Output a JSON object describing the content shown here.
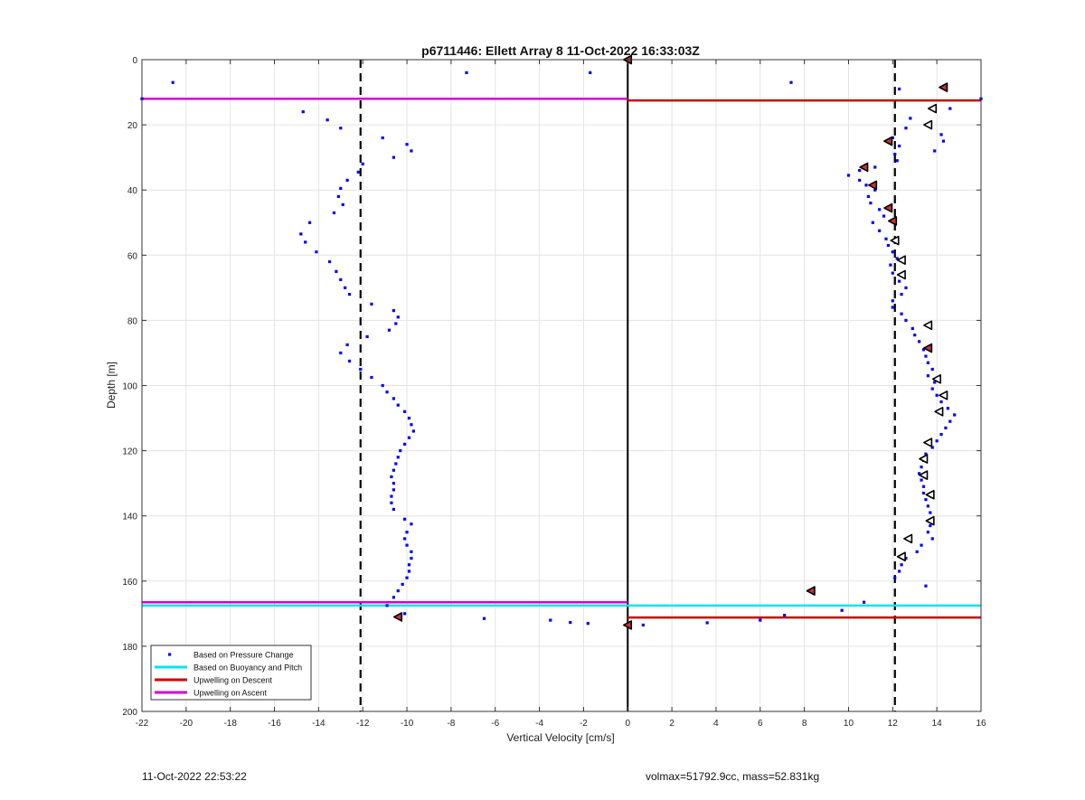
{
  "chart_data": {
    "type": "scatter",
    "title": "p6711446: Ellett Array 8 11-Oct-2022 16:33:03Z",
    "xlabel": "Vertical Velocity [cm/s]",
    "ylabel": "Depth [m]",
    "xlim": [
      -22,
      16
    ],
    "ylim": [
      0,
      200
    ],
    "y_reversed": true,
    "grid": true,
    "xticks": [
      -22,
      -20,
      -18,
      -16,
      -14,
      -12,
      -10,
      -8,
      -6,
      -4,
      -2,
      0,
      2,
      4,
      6,
      8,
      10,
      12,
      14,
      16
    ],
    "yticks": [
      0,
      20,
      40,
      60,
      80,
      100,
      120,
      140,
      160,
      180,
      200
    ],
    "legend_position": "bottom-left",
    "legend": [
      {
        "label": "Based on Pressure Change",
        "color": "#0000ff",
        "kind": "dot"
      },
      {
        "label": "Based on Buoyancy and Pitch",
        "color": "#00e5ee",
        "kind": "line"
      },
      {
        "label": "Upwelling on Descent",
        "color": "#cc0000",
        "kind": "line"
      },
      {
        "label": "Upwelling on Ascent",
        "color": "#d400d4",
        "kind": "line"
      }
    ],
    "reference_lines": {
      "zero_line": {
        "x": 0,
        "color": "#000000",
        "style": "solid"
      },
      "dashed_lines": [
        {
          "x": -12.1,
          "color": "#000000"
        },
        {
          "x": 12.1,
          "color": "#000000"
        }
      ]
    },
    "series": [
      {
        "name": "Based on Pressure Change",
        "color": "#0000ff",
        "points": [
          [
            -20.6,
            7
          ],
          [
            -7.3,
            4
          ],
          [
            -1.7,
            4
          ],
          [
            7.4,
            7
          ],
          [
            12.3,
            9
          ],
          [
            16.0,
            12
          ],
          [
            -22.0,
            12
          ],
          [
            -14.7,
            16
          ],
          [
            -13.6,
            18.5
          ],
          [
            -13.0,
            21
          ],
          [
            -11.1,
            24
          ],
          [
            -10.0,
            26
          ],
          [
            -9.8,
            28
          ],
          [
            -10.6,
            30
          ],
          [
            -12.0,
            32
          ],
          [
            -12.2,
            34.5
          ],
          [
            -12.7,
            37
          ],
          [
            -13.0,
            39.5
          ],
          [
            -13.1,
            42
          ],
          [
            -12.9,
            44.5
          ],
          [
            -13.3,
            47
          ],
          [
            -14.4,
            50
          ],
          [
            -14.8,
            53.5
          ],
          [
            -14.6,
            56
          ],
          [
            -14.1,
            59
          ],
          [
            -13.5,
            62
          ],
          [
            -13.2,
            65
          ],
          [
            -13.0,
            67.5
          ],
          [
            -12.8,
            70
          ],
          [
            -12.6,
            72
          ],
          [
            -11.6,
            75
          ],
          [
            -10.6,
            77
          ],
          [
            -10.4,
            79
          ],
          [
            -10.5,
            81
          ],
          [
            -10.8,
            83
          ],
          [
            -11.8,
            85
          ],
          [
            -12.7,
            87.5
          ],
          [
            -13.0,
            90
          ],
          [
            -12.6,
            92.5
          ],
          [
            -12.1,
            95
          ],
          [
            -11.6,
            97.5
          ],
          [
            -11.1,
            100
          ],
          [
            -10.9,
            102
          ],
          [
            -10.6,
            104
          ],
          [
            -10.4,
            106
          ],
          [
            -10.1,
            108
          ],
          [
            -9.9,
            110
          ],
          [
            -9.8,
            112
          ],
          [
            -9.7,
            114
          ],
          [
            -9.9,
            116
          ],
          [
            -10.1,
            118
          ],
          [
            -10.3,
            120
          ],
          [
            -10.4,
            122
          ],
          [
            -10.5,
            124
          ],
          [
            -10.6,
            126
          ],
          [
            -10.7,
            128
          ],
          [
            -10.6,
            130
          ],
          [
            -10.6,
            132
          ],
          [
            -10.7,
            134
          ],
          [
            -10.7,
            136
          ],
          [
            -10.6,
            138
          ],
          [
            -10.1,
            141
          ],
          [
            -9.8,
            142.5
          ],
          [
            -10.0,
            145
          ],
          [
            -10.1,
            147
          ],
          [
            -10.0,
            149
          ],
          [
            -9.8,
            151
          ],
          [
            -9.8,
            153
          ],
          [
            -9.9,
            155
          ],
          [
            -9.9,
            157
          ],
          [
            -10.0,
            159
          ],
          [
            -10.2,
            161
          ],
          [
            -10.4,
            163
          ],
          [
            -10.6,
            165
          ],
          [
            -10.9,
            167.5
          ],
          [
            -10.1,
            170
          ],
          [
            -6.5,
            171.5
          ],
          [
            -3.5,
            172
          ],
          [
            -2.6,
            172.7
          ],
          [
            -1.8,
            173
          ],
          [
            0.7,
            173.5
          ],
          [
            3.6,
            172.8
          ],
          [
            6.0,
            172
          ],
          [
            7.1,
            170.5
          ],
          [
            9.7,
            169
          ],
          [
            10.7,
            166.5
          ],
          [
            13.5,
            161.5
          ],
          [
            12.1,
            159
          ],
          [
            12.3,
            157
          ],
          [
            12.4,
            155
          ],
          [
            12.6,
            153
          ],
          [
            13.1,
            151
          ],
          [
            13.3,
            149
          ],
          [
            13.8,
            147
          ],
          [
            13.6,
            145
          ],
          [
            13.7,
            143
          ],
          [
            13.8,
            141
          ],
          [
            13.7,
            139
          ],
          [
            13.6,
            137
          ],
          [
            13.5,
            135
          ],
          [
            13.4,
            133
          ],
          [
            13.4,
            131
          ],
          [
            13.3,
            129
          ],
          [
            13.2,
            127
          ],
          [
            13.3,
            125
          ],
          [
            13.4,
            123
          ],
          [
            13.5,
            121
          ],
          [
            13.8,
            119
          ],
          [
            14.0,
            117
          ],
          [
            14.2,
            115
          ],
          [
            14.4,
            113
          ],
          [
            14.6,
            111
          ],
          [
            14.8,
            109
          ],
          [
            14.5,
            107
          ],
          [
            14.2,
            105
          ],
          [
            14.0,
            103
          ],
          [
            13.8,
            101
          ],
          [
            13.9,
            99
          ],
          [
            13.6,
            97
          ],
          [
            13.8,
            95
          ],
          [
            13.6,
            93
          ],
          [
            13.5,
            91
          ],
          [
            13.4,
            89
          ],
          [
            13.2,
            86.5
          ],
          [
            13.0,
            84.5
          ],
          [
            12.9,
            82.5
          ],
          [
            12.6,
            80
          ],
          [
            12.4,
            78
          ],
          [
            12.0,
            76
          ],
          [
            12.0,
            74
          ],
          [
            12.4,
            72
          ],
          [
            12.6,
            70
          ],
          [
            12.3,
            68
          ],
          [
            12.0,
            65.5
          ],
          [
            11.9,
            63
          ],
          [
            12.2,
            61
          ],
          [
            12.0,
            59
          ],
          [
            11.8,
            57
          ],
          [
            11.7,
            55
          ],
          [
            11.4,
            52.5
          ],
          [
            11.1,
            50
          ],
          [
            11.6,
            48
          ],
          [
            11.4,
            46
          ],
          [
            11.0,
            44
          ],
          [
            10.9,
            42
          ],
          [
            11.2,
            40
          ],
          [
            10.8,
            38.5
          ],
          [
            10.5,
            37
          ],
          [
            10.0,
            35.5
          ],
          [
            10.5,
            34
          ],
          [
            11.2,
            33
          ],
          [
            12.2,
            31
          ],
          [
            12.1,
            29
          ],
          [
            12.3,
            26.5
          ],
          [
            12.0,
            24
          ],
          [
            14.2,
            23
          ],
          [
            14.3,
            25
          ],
          [
            13.9,
            28
          ],
          [
            12.6,
            21
          ],
          [
            12.8,
            18
          ],
          [
            14.6,
            15
          ]
        ]
      },
      {
        "name": "Based on Buoyancy and Pitch",
        "color": "#00e5ee",
        "lines": [
          {
            "x1": -22,
            "x2": 16,
            "y": 167.5
          }
        ]
      },
      {
        "name": "Upwelling on Descent",
        "color": "#cc0000",
        "lines": [
          {
            "x1": 0,
            "x2": 16,
            "y": 12.5
          },
          {
            "x1": 0,
            "x2": 16,
            "y": 171.2
          }
        ]
      },
      {
        "name": "Upwelling on Ascent",
        "color": "#d400d4",
        "lines": [
          {
            "x1": -22,
            "x2": 0,
            "y": 12
          },
          {
            "x1": -22,
            "x2": 0,
            "y": 166.5
          }
        ]
      },
      {
        "name": "markers_filled",
        "color": "#cc3333",
        "points": [
          [
            0,
            0
          ],
          [
            14.3,
            8.5
          ],
          [
            11.8,
            25
          ],
          [
            10.7,
            33
          ],
          [
            11.1,
            38.5
          ],
          [
            11.8,
            45.5
          ],
          [
            12.0,
            49.5
          ],
          [
            13.6,
            88.5
          ],
          [
            8.3,
            163
          ],
          [
            -10.4,
            171
          ],
          [
            0,
            173.5
          ]
        ]
      },
      {
        "name": "markers_open",
        "color": "#ffffff",
        "points": [
          [
            13.8,
            15
          ],
          [
            13.6,
            20
          ],
          [
            12.1,
            55.5
          ],
          [
            12.4,
            61.5
          ],
          [
            12.4,
            66
          ],
          [
            13.6,
            81.5
          ],
          [
            14.0,
            98
          ],
          [
            14.3,
            103
          ],
          [
            14.1,
            108
          ],
          [
            13.6,
            117.5
          ],
          [
            13.4,
            122.5
          ],
          [
            13.4,
            127.5
          ],
          [
            13.7,
            133.5
          ],
          [
            13.7,
            141.5
          ],
          [
            12.7,
            147
          ],
          [
            12.4,
            152.5
          ]
        ]
      }
    ]
  },
  "footer": {
    "left_text": "11-Oct-2022 22:53:22",
    "right_text": "volmax=51792.9cc, mass=52.831kg"
  }
}
